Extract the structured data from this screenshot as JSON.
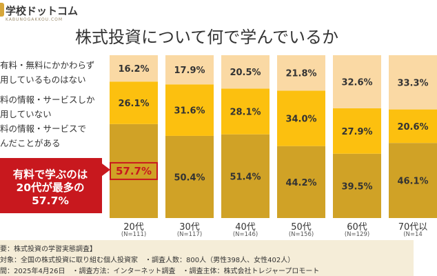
{
  "logo": {
    "text": "学校ドットコム",
    "sub": "KABUNOGAKKOU.COM",
    "icon": "school-logo-icon"
  },
  "legend": [
    {
      "lines": [
        "有料・無料にかかわらず",
        "用しているものはない"
      ]
    },
    {
      "lines": [
        "料の情報・サービスしか",
        "用していない"
      ]
    },
    {
      "lines": [
        "料の情報・サービスで",
        "んだことがある"
      ]
    }
  ],
  "callout": {
    "lines": [
      "有料で学ぶのは",
      "20代が最多の",
      "57.7%"
    ]
  },
  "footer": {
    "lines": [
      "要：株式投資の学習実態調査】",
      "対象：全国の株式投資に取り組む個人投資家　・調査人数：800人（男性398人、女性402人）",
      "間：2025年4月26日　・調査方法：インターネット調査　・調査主体：株式会社トレジャープロモート"
    ]
  },
  "colors": {
    "top": "#fad9a4",
    "mid": "#fcc00f",
    "bottom": "#d0a226",
    "highlight": "#c8181e",
    "footer_bg": "#f5edd8"
  },
  "chart_data": {
    "type": "bar",
    "stacked": true,
    "title": "株式投資について何で学んでいるか",
    "unit": "%",
    "ylim": [
      0,
      100
    ],
    "grid": false,
    "categories": [
      "20代",
      "30代",
      "40代",
      "50代",
      "60代",
      "70代以"
    ],
    "n_labels": [
      "(N=111)",
      "(N=117)",
      "(N=146)",
      "(N=156)",
      "(N=129)",
      "(N=14"
    ],
    "series": [
      {
        "values": [
          57.7,
          50.4,
          51.4,
          44.2,
          39.5,
          46.1
        ],
        "labels": [
          "57.7%",
          "50.4%",
          "51.4%",
          "44.2%",
          "39.5%",
          "46.1%"
        ]
      },
      {
        "values": [
          26.1,
          31.6,
          28.1,
          34.0,
          27.9,
          20.6
        ],
        "labels": [
          "26.1%",
          "31.6%",
          "28.1%",
          "34.0%",
          "27.9%",
          "20.6%"
        ]
      },
      {
        "values": [
          16.2,
          17.9,
          20.5,
          21.8,
          32.6,
          33.3
        ],
        "labels": [
          "16.2%",
          "17.9%",
          "20.5%",
          "21.8%",
          "32.6%",
          "33.3%"
        ]
      }
    ],
    "highlight": {
      "category_index": 0,
      "series_index": 0
    }
  }
}
